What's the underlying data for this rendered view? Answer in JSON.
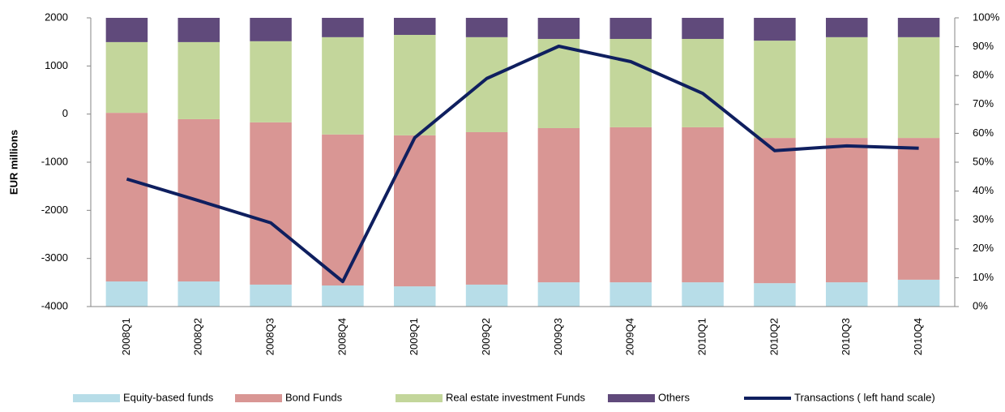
{
  "chart_data": {
    "type": "bar",
    "stacked": true,
    "y_label": "EUR millions",
    "categories": [
      "2008Q1",
      "2008Q2",
      "2008Q3",
      "2008Q4",
      "2009Q1",
      "2009Q2",
      "2009Q3",
      "2009Q4",
      "2010Q1",
      "2010Q2",
      "2010Q3",
      "2010Q4"
    ],
    "series": [
      {
        "name": "Equity-based funds",
        "type": "bar",
        "axis": "y2",
        "color": "#b7dde8",
        "values": [
          8.7,
          8.7,
          7.6,
          7.3,
          7.0,
          7.6,
          8.4,
          8.4,
          8.4,
          8.1,
          8.4,
          9.3
        ]
      },
      {
        "name": "Bond Funds",
        "type": "bar",
        "axis": "y2",
        "color": "#d99694",
        "values": [
          58.4,
          56.2,
          56.2,
          52.3,
          52.3,
          52.8,
          53.4,
          53.7,
          53.7,
          50.3,
          50.0,
          49.1
        ]
      },
      {
        "name": "Real estate  investment Funds",
        "type": "bar",
        "axis": "y2",
        "color": "#c3d69b",
        "values": [
          24.5,
          26.7,
          28.1,
          33.7,
          34.8,
          32.9,
          30.9,
          30.6,
          30.6,
          33.7,
          34.9,
          34.9
        ]
      },
      {
        "name": "Others",
        "type": "bar",
        "axis": "y2",
        "color": "#604a7b",
        "values": [
          8.4,
          8.4,
          8.1,
          6.7,
          5.9,
          6.7,
          7.3,
          7.3,
          7.3,
          7.9,
          6.7,
          6.7
        ]
      },
      {
        "name": "Transactions ( left hand scale)",
        "type": "line",
        "axis": "y",
        "color": "#0f1f5f",
        "values": [
          -1350,
          -1800,
          -2260,
          -3480,
          -490,
          740,
          1410,
          1090,
          430,
          -760,
          -660,
          -710
        ]
      }
    ],
    "ylim": [
      -4000,
      2000
    ],
    "yticks": [
      -4000,
      -3000,
      -2000,
      -1000,
      0,
      1000,
      2000
    ],
    "y2lim": [
      0,
      100
    ],
    "y2ticks": [
      {
        "value": 0,
        "label": "0%"
      },
      {
        "value": 10,
        "label": "10%"
      },
      {
        "value": 20,
        "label": "20%"
      },
      {
        "value": 30,
        "label": "30%"
      },
      {
        "value": 40,
        "label": "40%"
      },
      {
        "value": 50,
        "label": "50%"
      },
      {
        "value": 60,
        "label": "60%"
      },
      {
        "value": 70,
        "label": "70%"
      },
      {
        "value": 80,
        "label": "80%"
      },
      {
        "value": 90,
        "label": "90%"
      },
      {
        "value": 100,
        "label": "100%"
      }
    ],
    "grid": false,
    "legend": "bottom"
  }
}
